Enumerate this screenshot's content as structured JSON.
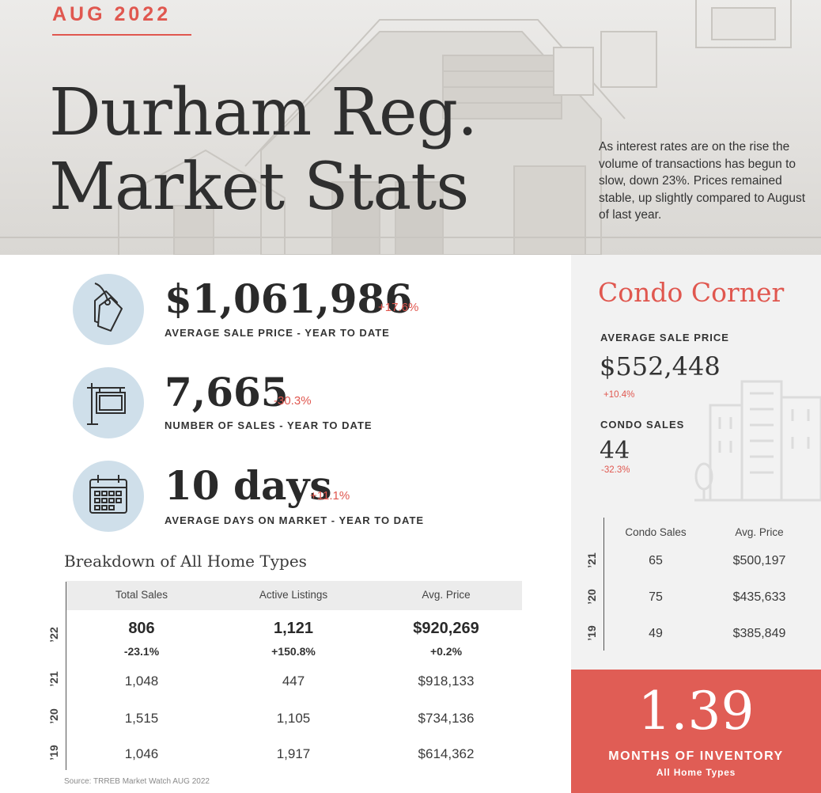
{
  "header": {
    "month": "AUG 2022",
    "title_line1": "Durham Reg.",
    "title_line2": "Market Stats",
    "intro": "As interest rates are on the rise the volume of transactions has begun to slow, down 23%.  Prices remained stable, up slightly compared to August of last year."
  },
  "stats": [
    {
      "icon": "price-tag-icon",
      "value": "$1,061,986",
      "change": "+17.6%",
      "label": "AVERAGE SALE PRICE - YEAR TO DATE"
    },
    {
      "icon": "sale-sign-icon",
      "value": "7,665",
      "change": "-30.3%",
      "label": "NUMBER OF SALES - YEAR TO DATE"
    },
    {
      "icon": "calendar-icon",
      "value": "10 days",
      "change": "+11.1%",
      "label": "AVERAGE DAYS ON MARKET - YEAR TO DATE"
    }
  ],
  "breakdown": {
    "title": "Breakdown of All Home Types",
    "columns": [
      "Total Sales",
      "Active Listings",
      "Avg. Price"
    ],
    "rows": [
      {
        "year": "’22",
        "values": [
          "806",
          "1,121",
          "$920,269"
        ],
        "changes": [
          "-23.1%",
          "+150.8%",
          "+0.2%"
        ]
      },
      {
        "year": "’21",
        "values": [
          "1,048",
          "447",
          "$918,133"
        ]
      },
      {
        "year": "’20",
        "values": [
          "1,515",
          "1,105",
          "$734,136"
        ]
      },
      {
        "year": "’19",
        "values": [
          "1,046",
          "1,917",
          "$614,362"
        ]
      }
    ],
    "source": "Source: TRREB Market Watch AUG 2022"
  },
  "condo": {
    "title": "Condo Corner",
    "avg_price_label": "AVERAGE SALE PRICE",
    "avg_price_value": "$552,448",
    "avg_price_change": "+10.4%",
    "sales_label": "CONDO SALES",
    "sales_value": "44",
    "sales_change": "-32.3%",
    "columns": [
      "Condo Sales",
      "Avg. Price"
    ],
    "rows": [
      {
        "year": "’21",
        "values": [
          "65",
          "$500,197"
        ]
      },
      {
        "year": "’20",
        "values": [
          "75",
          "$435,633"
        ]
      },
      {
        "year": "’19",
        "values": [
          "49",
          "$385,849"
        ]
      }
    ]
  },
  "inventory": {
    "value": "1.39",
    "label": "MONTHS OF INVENTORY",
    "sub": "All Home Types"
  },
  "colors": {
    "accent": "#e0574f",
    "icon_circle": "#cfdfea",
    "panel": "#f2f2f2",
    "inventory_bg": "#e05d55"
  }
}
